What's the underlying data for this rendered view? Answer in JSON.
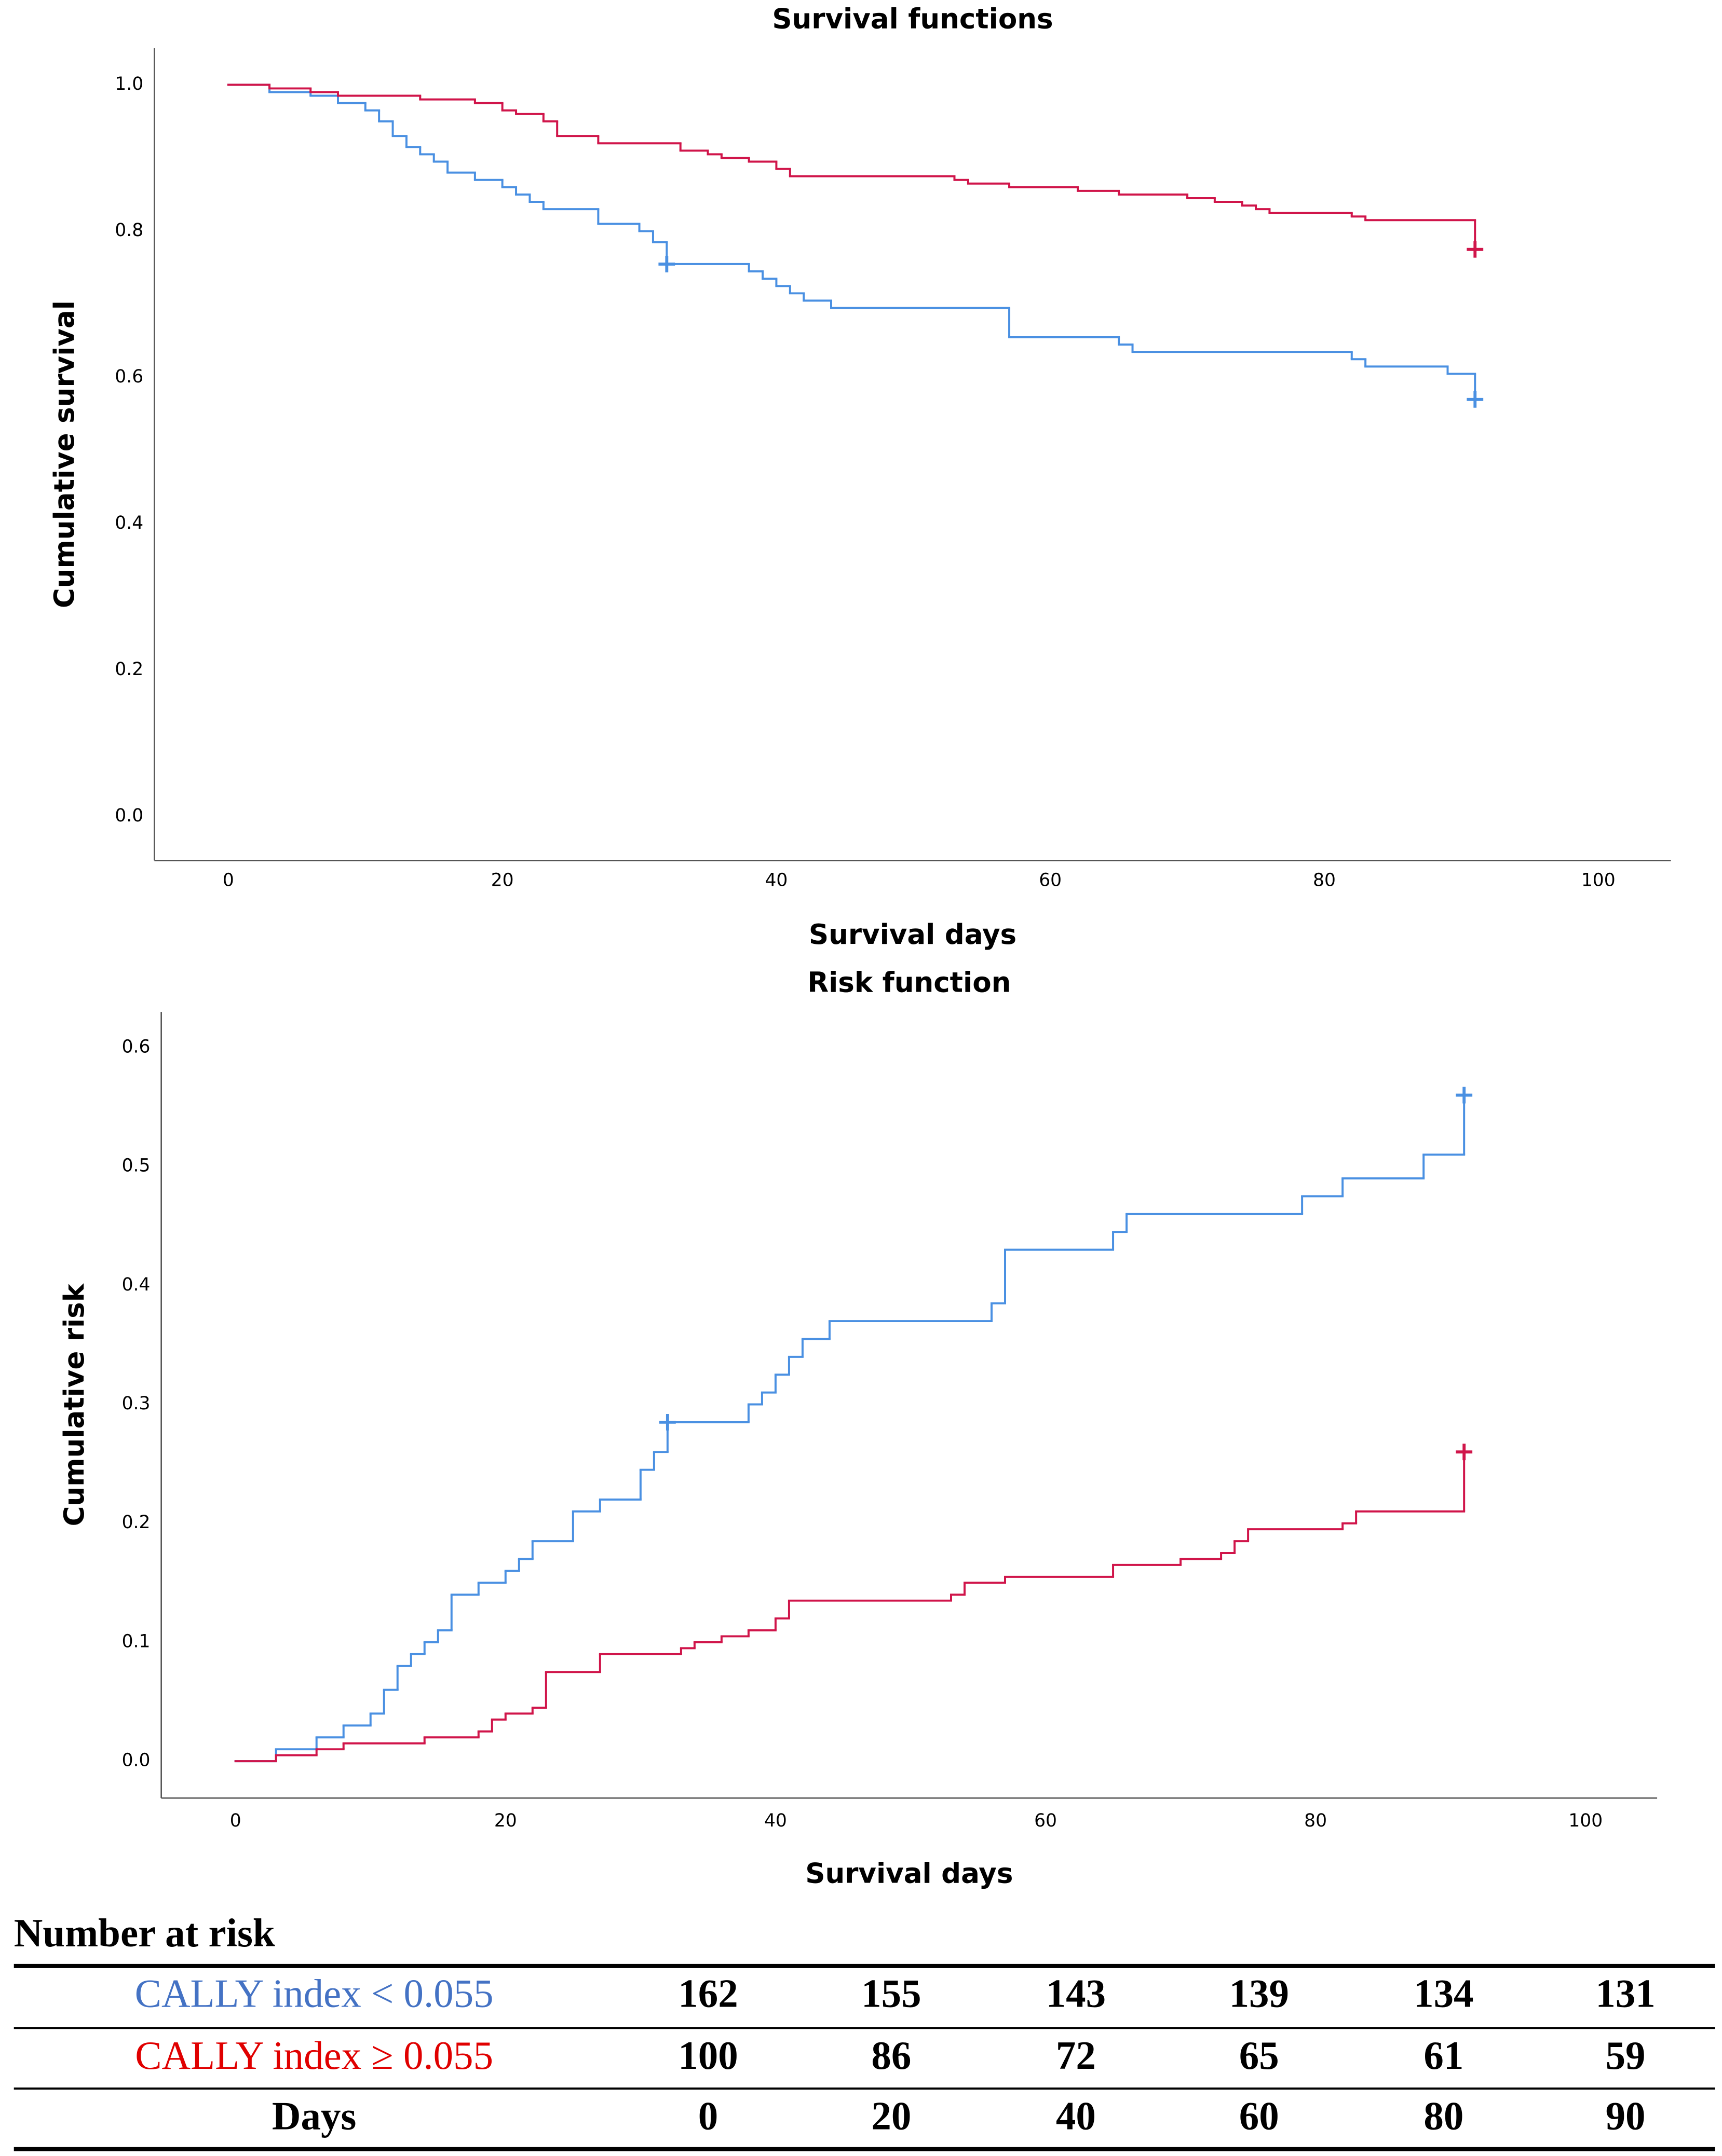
{
  "chart_data": [
    {
      "type": "step",
      "title": "Survival functions",
      "x_label": "Survival days",
      "y_label": "Cumulative survival",
      "xlim": [
        -5.4,
        105.3
      ],
      "ylim": [
        -0.06,
        1.05
      ],
      "xticks": [
        0,
        20,
        40,
        60,
        80,
        100
      ],
      "yticks": [
        {
          "value": 0,
          "label": "0.0"
        },
        {
          "value": 0.2,
          "label": "0.2"
        },
        {
          "value": 0.4,
          "label": "0.4"
        },
        {
          "value": 0.6,
          "label": "0.6"
        },
        {
          "value": 0.8,
          "label": "0.8"
        },
        {
          "value": 1,
          "label": "1.0"
        }
      ],
      "series": [
        {
          "color": "#4a90e2",
          "x": [
            0,
            3,
            6,
            8,
            10,
            11,
            12,
            13,
            14,
            15,
            16,
            18,
            20,
            21,
            22,
            23,
            27,
            30,
            31,
            32,
            38,
            39,
            40,
            41,
            42,
            44,
            57,
            65,
            66,
            82,
            83,
            89,
            91
          ],
          "values": [
            1.0,
            0.99,
            0.985,
            0.975,
            0.965,
            0.95,
            0.93,
            0.915,
            0.905,
            0.895,
            0.88,
            0.87,
            0.86,
            0.85,
            0.84,
            0.83,
            0.81,
            0.8,
            0.785,
            0.755,
            0.745,
            0.735,
            0.725,
            0.715,
            0.705,
            0.695,
            0.655,
            0.645,
            0.635,
            0.625,
            0.615,
            0.605,
            0.57
          ],
          "censored_x": [
            32,
            91
          ],
          "censored_values": [
            0.755,
            0.57
          ]
        },
        {
          "color": "#d0154a",
          "x": [
            0,
            3,
            6,
            8,
            14,
            18,
            20,
            21,
            23,
            24,
            27,
            33,
            35,
            36,
            38,
            40,
            41,
            53,
            54,
            57,
            62,
            65,
            70,
            72,
            74,
            75,
            76,
            82,
            83,
            91
          ],
          "values": [
            1.0,
            0.995,
            0.99,
            0.985,
            0.98,
            0.975,
            0.965,
            0.96,
            0.95,
            0.93,
            0.92,
            0.91,
            0.905,
            0.9,
            0.895,
            0.885,
            0.875,
            0.87,
            0.865,
            0.86,
            0.855,
            0.85,
            0.845,
            0.84,
            0.835,
            0.83,
            0.825,
            0.82,
            0.815,
            0.775
          ],
          "censored_x": [
            91
          ],
          "censored_values": [
            0.775
          ]
        }
      ]
    },
    {
      "type": "step",
      "title": "Risk function",
      "x_label": "Survival days",
      "y_label": "Cumulative risk",
      "xlim": [
        -5.5,
        105.3
      ],
      "ylim": [
        -0.031,
        0.63
      ],
      "xticks": [
        0,
        20,
        40,
        60,
        80,
        100
      ],
      "yticks": [
        {
          "value": 0,
          "label": "0.0"
        },
        0.1,
        0.2,
        0.3,
        0.4,
        0.5,
        0.6
      ],
      "series": [
        {
          "color": "#4a90e2",
          "x": [
            0,
            3,
            6,
            8,
            10,
            11,
            12,
            13,
            14,
            15,
            16,
            18,
            20,
            21,
            22,
            25,
            27,
            30,
            31,
            32,
            38,
            39,
            40,
            41,
            42,
            44,
            56,
            57,
            65,
            66,
            79,
            82,
            88,
            91
          ],
          "values": [
            0,
            0.01,
            0.02,
            0.03,
            0.04,
            0.06,
            0.08,
            0.09,
            0.1,
            0.11,
            0.14,
            0.15,
            0.16,
            0.17,
            0.185,
            0.21,
            0.22,
            0.245,
            0.26,
            0.285,
            0.3,
            0.31,
            0.325,
            0.34,
            0.355,
            0.37,
            0.385,
            0.43,
            0.445,
            0.46,
            0.475,
            0.49,
            0.51,
            0.56
          ],
          "censored_x": [
            32,
            91
          ],
          "censored_values": [
            0.285,
            0.56
          ]
        },
        {
          "color": "#d0154a",
          "x": [
            0,
            3,
            6,
            8,
            14,
            18,
            19,
            20,
            22,
            23,
            27,
            33,
            34,
            36,
            38,
            40,
            41,
            53,
            54,
            57,
            65,
            70,
            73,
            74,
            75,
            82,
            83,
            91
          ],
          "values": [
            0,
            0.005,
            0.01,
            0.015,
            0.02,
            0.025,
            0.035,
            0.04,
            0.045,
            0.075,
            0.09,
            0.095,
            0.1,
            0.105,
            0.11,
            0.12,
            0.135,
            0.14,
            0.15,
            0.155,
            0.165,
            0.17,
            0.175,
            0.185,
            0.195,
            0.2,
            0.21,
            0.26
          ],
          "censored_x": [
            91
          ],
          "censored_values": [
            0.26
          ]
        }
      ]
    }
  ],
  "table": {
    "title": "Number at risk",
    "row_colors": [
      "#4472c4",
      "#e00000",
      "#000000"
    ],
    "rows": [
      [
        "CALLY index < 0.055",
        "162",
        "155",
        "143",
        "139",
        "134",
        "131"
      ],
      [
        "CALLY index ≥ 0.055",
        "100",
        "86",
        "72",
        "65",
        "61",
        "59"
      ],
      [
        "Days",
        "0",
        "20",
        "40",
        "60",
        "80",
        "90"
      ]
    ]
  }
}
